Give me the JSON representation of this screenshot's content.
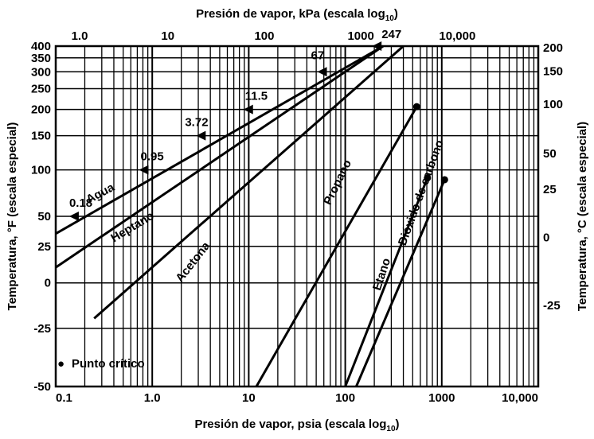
{
  "chart_data": {
    "type": "line",
    "title_top": "Presión de vapor, kPa (escala log",
    "title_top_sub": "10",
    "title_top_end": ")",
    "xlabel": "Presión de vapor, psia (escala log",
    "xlabel_sub": "10",
    "xlabel_end": ")",
    "ylabel_left": "Temperatura, °F (escala especial)",
    "ylabel_right": "Temperatura, °C (escala especial)",
    "x_scale": "log",
    "xlim_psia": [
      0.1,
      10000
    ],
    "x_ticks_psia": [
      "0.1",
      "1.0",
      "10",
      "100",
      "1000",
      "10,000"
    ],
    "x_ticks_kpa": [
      "1.0",
      "10",
      "100",
      "1000",
      "10,000"
    ],
    "y_ticks_f": [
      "400",
      "350",
      "300",
      "250",
      "200",
      "150",
      "100",
      "50",
      "25",
      "0",
      "-25",
      "-50"
    ],
    "y_ticks_c": [
      "200",
      "150",
      "100",
      "50",
      "25",
      "0",
      "-25"
    ],
    "grid": true,
    "series": [
      {
        "name": "Agua",
        "points": [
          {
            "psia": 0.1,
            "f": 35
          },
          {
            "psia": 247,
            "f": 400
          }
        ]
      },
      {
        "name": "Heptano",
        "points": [
          {
            "psia": 0.1,
            "f": 10
          },
          {
            "psia": 247,
            "f": 400
          }
        ]
      },
      {
        "name": "Acetona",
        "points": [
          {
            "psia": 0.25,
            "f": -20
          },
          {
            "psia": 400,
            "f": 400
          }
        ]
      },
      {
        "name": "Propano",
        "points": [
          {
            "psia": 12,
            "f": -50
          },
          {
            "psia": 550,
            "f": 206
          }
        ]
      },
      {
        "name": "Etano",
        "points": [
          {
            "psia": 100,
            "f": -50
          },
          {
            "psia": 710,
            "f": 90
          }
        ]
      },
      {
        "name": "Dióxido de carbono",
        "points": [
          {
            "psia": 130,
            "f": -50
          },
          {
            "psia": 1070,
            "f": 88
          }
        ]
      }
    ],
    "critical_points": [
      {
        "psia": 550,
        "f": 206
      },
      {
        "psia": 710,
        "f": 90
      },
      {
        "psia": 1070,
        "f": 88
      }
    ],
    "annotations": [
      {
        "text": "0.18",
        "psia": 0.18,
        "f": 50
      },
      {
        "text": "0.95",
        "psia": 0.95,
        "f": 100
      },
      {
        "text": "3.72",
        "psia": 3.72,
        "f": 150
      },
      {
        "text": "11.5",
        "psia": 11.5,
        "f": 200
      },
      {
        "text": "67",
        "psia": 67,
        "f": 300
      },
      {
        "text": "247",
        "psia": 247,
        "f": 400
      }
    ],
    "legend": {
      "symbol": "●",
      "text": "Punto crítico",
      "placement": "bottom-left"
    }
  }
}
